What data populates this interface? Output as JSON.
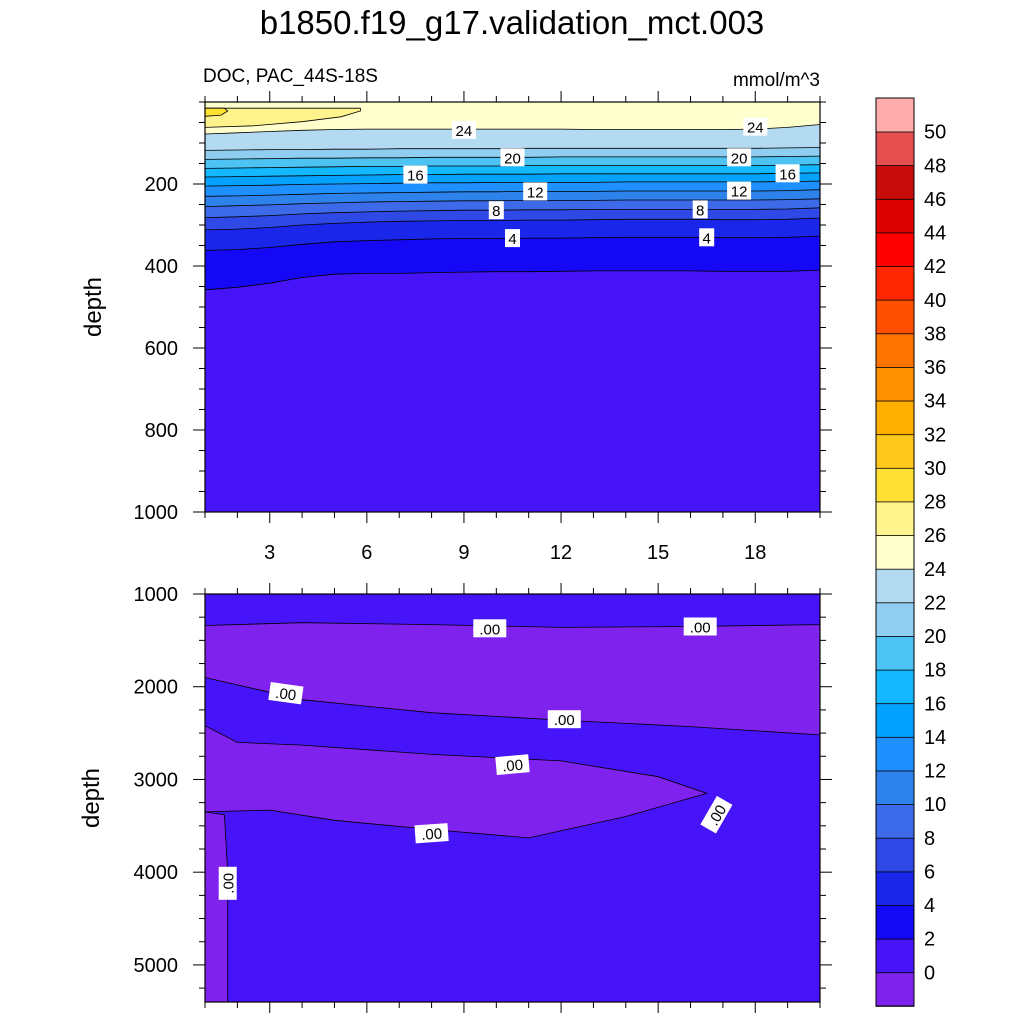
{
  "title": "b1850.f19_g17.validation_mct.003",
  "chart_data": {
    "type": "contour",
    "variable_label": "DOC, PAC_44S-18S",
    "units": "mmol/m^3",
    "x": {
      "range": [
        1,
        20
      ],
      "ticks": [
        3,
        6,
        9,
        12,
        15,
        18
      ],
      "minor_step": 1
    },
    "colorbar": {
      "levels": [
        0,
        2,
        4,
        6,
        8,
        10,
        12,
        14,
        16,
        18,
        20,
        22,
        24,
        26,
        28,
        30,
        32,
        34,
        36,
        38,
        40,
        42,
        44,
        46,
        48,
        50
      ],
      "colors": [
        "#8022ee",
        "#4713f8",
        "#1508f5",
        "#1a27ea",
        "#2f49e6",
        "#3c6ae9",
        "#2d82ec",
        "#1e90ff",
        "#04a2ff",
        "#13b8ff",
        "#4cc3f2",
        "#8fcef0",
        "#b4daf2",
        "#ffffcd",
        "#fff38e",
        "#ffe133",
        "#ffc81d",
        "#ffaf00",
        "#ff9100",
        "#ff7400",
        "#ff5000",
        "#ff2700",
        "#ff0000",
        "#dd0000",
        "#c70c0c",
        "#e54f4f",
        "#ffacac"
      ]
    },
    "panels": [
      {
        "name": "upper",
        "ylabel": "depth",
        "y_range": [
          0,
          1000
        ],
        "y_ticks": [
          200,
          400,
          600,
          800,
          1000
        ],
        "y_minor_step": 50,
        "contours": [
          {
            "level": 2,
            "depth": [
              458,
              452,
              442,
              428,
              420,
              418,
              418,
              416,
              415,
              414,
              414,
              413,
              412,
              412,
              412,
              412,
              413,
              413,
              413,
              410
            ]
          },
          {
            "level": 4,
            "depth": [
              362,
              360,
              355,
              347,
              341,
              338,
              336,
              334,
              333,
              333,
              332,
              332,
              331,
              330,
              330,
              330,
              331,
              331,
              330,
              327
            ]
          },
          {
            "level": 6,
            "depth": [
              312,
              310,
              306,
              300,
              296,
              293,
              291,
              290,
              289,
              289,
              288,
              288,
              287,
              286,
              286,
              286,
              287,
              287,
              286,
              283
            ]
          },
          {
            "level": 8,
            "depth": [
              282,
              280,
              277,
              273,
              270,
              268,
              266,
              265,
              264,
              264,
              263,
              263,
              262,
              262,
              262,
              262,
              262,
              262,
              261,
              258
            ]
          },
          {
            "level": 10,
            "depth": [
              255,
              253,
              251,
              248,
              246,
              244,
              243,
              242,
              241,
              241,
              240,
              240,
              240,
              239,
              239,
              239,
              239,
              239,
              238,
              236
            ]
          },
          {
            "level": 12,
            "depth": [
              230,
              229,
              227,
              225,
              223,
              222,
              221,
              220,
              219,
              219,
              218,
              218,
              218,
              217,
              217,
              217,
              217,
              217,
              216,
              214
            ]
          },
          {
            "level": 14,
            "depth": [
              205,
              204,
              203,
              201,
              200,
              199,
              198,
              197,
              197,
              196,
              196,
              196,
              196,
              195,
              195,
              195,
              195,
              195,
              194,
              193
            ]
          },
          {
            "level": 16,
            "depth": [
              183,
              182,
              181,
              180,
              179,
              178,
              177,
              177,
              176,
              176,
              176,
              175,
              175,
              175,
              175,
              175,
              175,
              175,
              174,
              173
            ]
          },
          {
            "level": 18,
            "depth": [
              162,
              161,
              160,
              159,
              158,
              157,
              157,
              156,
              156,
              156,
              155,
              155,
              155,
              155,
              155,
              155,
              155,
              155,
              154,
              153
            ]
          },
          {
            "level": 20,
            "depth": [
              140,
              139,
              138,
              137,
              137,
              136,
              136,
              135,
              135,
              135,
              135,
              134,
              134,
              134,
              134,
              134,
              134,
              134,
              133,
              132
            ]
          },
          {
            "level": 22,
            "depth": [
              118,
              117,
              116,
              116,
              115,
              115,
              114,
              114,
              114,
              114,
              113,
              113,
              113,
              113,
              113,
              113,
              113,
              113,
              112,
              111
            ]
          },
          {
            "level": 24,
            "depth": [
              78,
              75,
              72,
              69,
              67,
              66,
              66,
              66,
              66,
              66,
              66,
              66,
              67,
              67,
              67,
              67,
              67,
              66,
              62,
              55
            ]
          }
        ],
        "closed_contours": [
          {
            "level": 26,
            "points": [
              [
                1,
                15
              ],
              [
                5.8,
                15
              ],
              [
                5.8,
                22
              ],
              [
                5.2,
                36
              ],
              [
                4,
                48
              ],
              [
                2.5,
                58
              ],
              [
                1,
                62
              ]
            ]
          },
          {
            "level": 28,
            "points": [
              [
                1,
                15
              ],
              [
                1.6,
                15
              ],
              [
                1.7,
                22
              ],
              [
                1.5,
                32
              ],
              [
                1,
                35
              ]
            ]
          }
        ],
        "line_labels": [
          {
            "text": "24",
            "x": 9.0,
            "depth": 68
          },
          {
            "text": "24",
            "x": 18.0,
            "depth": 60
          },
          {
            "text": "20",
            "x": 10.5,
            "depth": 135
          },
          {
            "text": "20",
            "x": 17.5,
            "depth": 135
          },
          {
            "text": "16",
            "x": 7.5,
            "depth": 177
          },
          {
            "text": "16",
            "x": 19.0,
            "depth": 174
          },
          {
            "text": "12",
            "x": 11.2,
            "depth": 218
          },
          {
            "text": "12",
            "x": 17.5,
            "depth": 216
          },
          {
            "text": "8",
            "x": 10.0,
            "depth": 264
          },
          {
            "text": "8",
            "x": 16.3,
            "depth": 262
          },
          {
            "text": "4",
            "x": 10.5,
            "depth": 332
          },
          {
            "text": "4",
            "x": 16.5,
            "depth": 330
          }
        ]
      },
      {
        "name": "lower",
        "ylabel": "depth",
        "y_range": [
          1000,
          5400
        ],
        "y_ticks": [
          1000,
          2000,
          3000,
          4000,
          5000
        ],
        "y_minor_step": 250,
        "regions": [
          {
            "level_index": 1,
            "points": [
              [
                1,
                1000
              ],
              [
                20,
                1000
              ],
              [
                20,
                5400
              ],
              [
                1,
                5400
              ]
            ]
          },
          {
            "level_index": 0,
            "points": [
              [
                1,
                1340
              ],
              [
                4,
                1310
              ],
              [
                8,
                1330
              ],
              [
                12,
                1360
              ],
              [
                16,
                1350
              ],
              [
                20,
                1330
              ],
              [
                20,
                2520
              ],
              [
                16,
                2430
              ],
              [
                12,
                2360
              ],
              [
                8,
                2280
              ],
              [
                4,
                2140
              ],
              [
                1,
                1900
              ]
            ]
          },
          {
            "level_index": 0,
            "points": [
              [
                1,
                2420
              ],
              [
                2,
                2600
              ],
              [
                4,
                2630
              ],
              [
                8,
                2730
              ],
              [
                12,
                2800
              ],
              [
                15,
                2970
              ],
              [
                16.5,
                3150
              ],
              [
                14,
                3400
              ],
              [
                11,
                3630
              ],
              [
                8,
                3540
              ],
              [
                5,
                3440
              ],
              [
                3,
                3330
              ],
              [
                1,
                3350
              ]
            ]
          },
          {
            "level_index": 0,
            "points": [
              [
                1,
                3350
              ],
              [
                1.6,
                3380
              ],
              [
                1.7,
                4000
              ],
              [
                1.7,
                5400
              ],
              [
                1,
                5400
              ]
            ]
          }
        ],
        "line_labels": [
          {
            "text": ".00",
            "x": 9.8,
            "depth": 1370,
            "angle": 0
          },
          {
            "text": ".00",
            "x": 16.3,
            "depth": 1350,
            "angle": 0
          },
          {
            "text": ".00",
            "x": 3.5,
            "depth": 2070,
            "angle": 8
          },
          {
            "text": ".00",
            "x": 12.1,
            "depth": 2350,
            "angle": 0
          },
          {
            "text": ".00",
            "x": 10.5,
            "depth": 2840,
            "angle": -5
          },
          {
            "text": ".00",
            "x": 8.0,
            "depth": 3580,
            "angle": -4
          },
          {
            "text": ".00",
            "x": 16.8,
            "depth": 3380,
            "angle": -60
          },
          {
            "text": ".00",
            "x": 1.7,
            "depth": 4120,
            "angle": -90
          }
        ]
      }
    ]
  }
}
